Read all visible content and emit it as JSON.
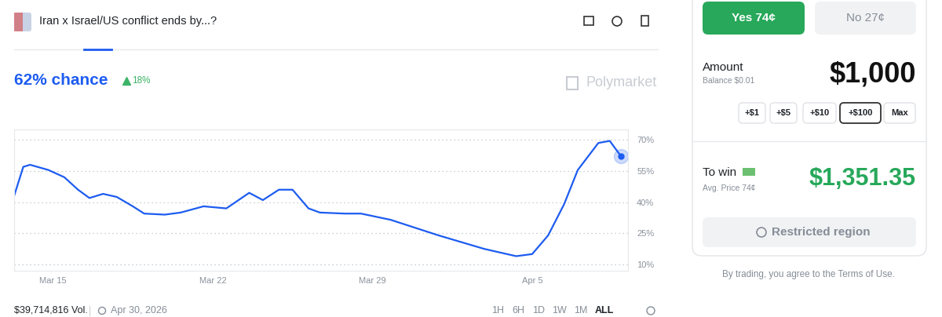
{
  "chart_data": {
    "type": "line",
    "x": [
      13.3,
      13.7,
      14.0,
      14.8,
      15.5,
      16.1,
      16.6,
      17.2,
      17.8,
      18.5,
      19.0,
      19.9,
      20.6,
      21.6,
      22.6,
      23.6,
      24.2,
      24.9,
      25.5,
      26.2,
      26.7,
      27.8,
      28.5,
      29.8,
      31.9,
      33.9,
      35.3,
      36.0,
      36.7,
      37.4,
      38.0,
      38.9,
      39.4,
      39.9
    ],
    "values": [
      43,
      57,
      58,
      55.5,
      52,
      46,
      42,
      44,
      42.5,
      38,
      34.5,
      34,
      35,
      38,
      37,
      44.5,
      41,
      46,
      46,
      37,
      35,
      34.5,
      34.5,
      31.5,
      24,
      17.5,
      14,
      15,
      24,
      39,
      55.5,
      68.5,
      69.5,
      62
    ],
    "color": "#1d5cf0",
    "xlim": [
      13.3,
      40.2
    ],
    "xticks": [
      {
        "value": 15,
        "label": "Mar 15"
      },
      {
        "value": 22,
        "label": "Mar 22"
      },
      {
        "value": 29,
        "label": "Mar 29"
      },
      {
        "value": 36,
        "label": "Apr 5"
      }
    ],
    "ylim": [
      7,
      75
    ],
    "yticks": [
      {
        "value": 10,
        "label": "10%"
      },
      {
        "value": 25,
        "label": "25%"
      },
      {
        "value": 40,
        "label": "40%"
      },
      {
        "value": 55,
        "label": "55%"
      },
      {
        "value": 70,
        "label": "70%"
      }
    ],
    "grid": true
  },
  "header": {
    "title": "Iran x Israel/US conflict ends by...?",
    "chance": "62% chance",
    "change": "18%",
    "watermark": "Polymarket"
  },
  "footer": {
    "volume": "$39,714,816 Vol.",
    "end_date": "Apr 30, 2026",
    "ranges": [
      "1H",
      "6H",
      "1D",
      "1W",
      "1M",
      "ALL"
    ]
  },
  "trade_panel": {
    "yes": "Yes 74¢",
    "no": "No 27¢",
    "amount_label": "Amount",
    "balance": "Balance $0.01",
    "amount": "$1,000",
    "increments": [
      "+$1",
      "+$5",
      "+$10",
      "+$100",
      "Max"
    ],
    "to_win_label": "To win",
    "avg_price": "Avg. Price 74¢",
    "payout": "$1,351.35",
    "button": "Restricted region",
    "terms": "By trading, you agree to the Terms of Use."
  }
}
